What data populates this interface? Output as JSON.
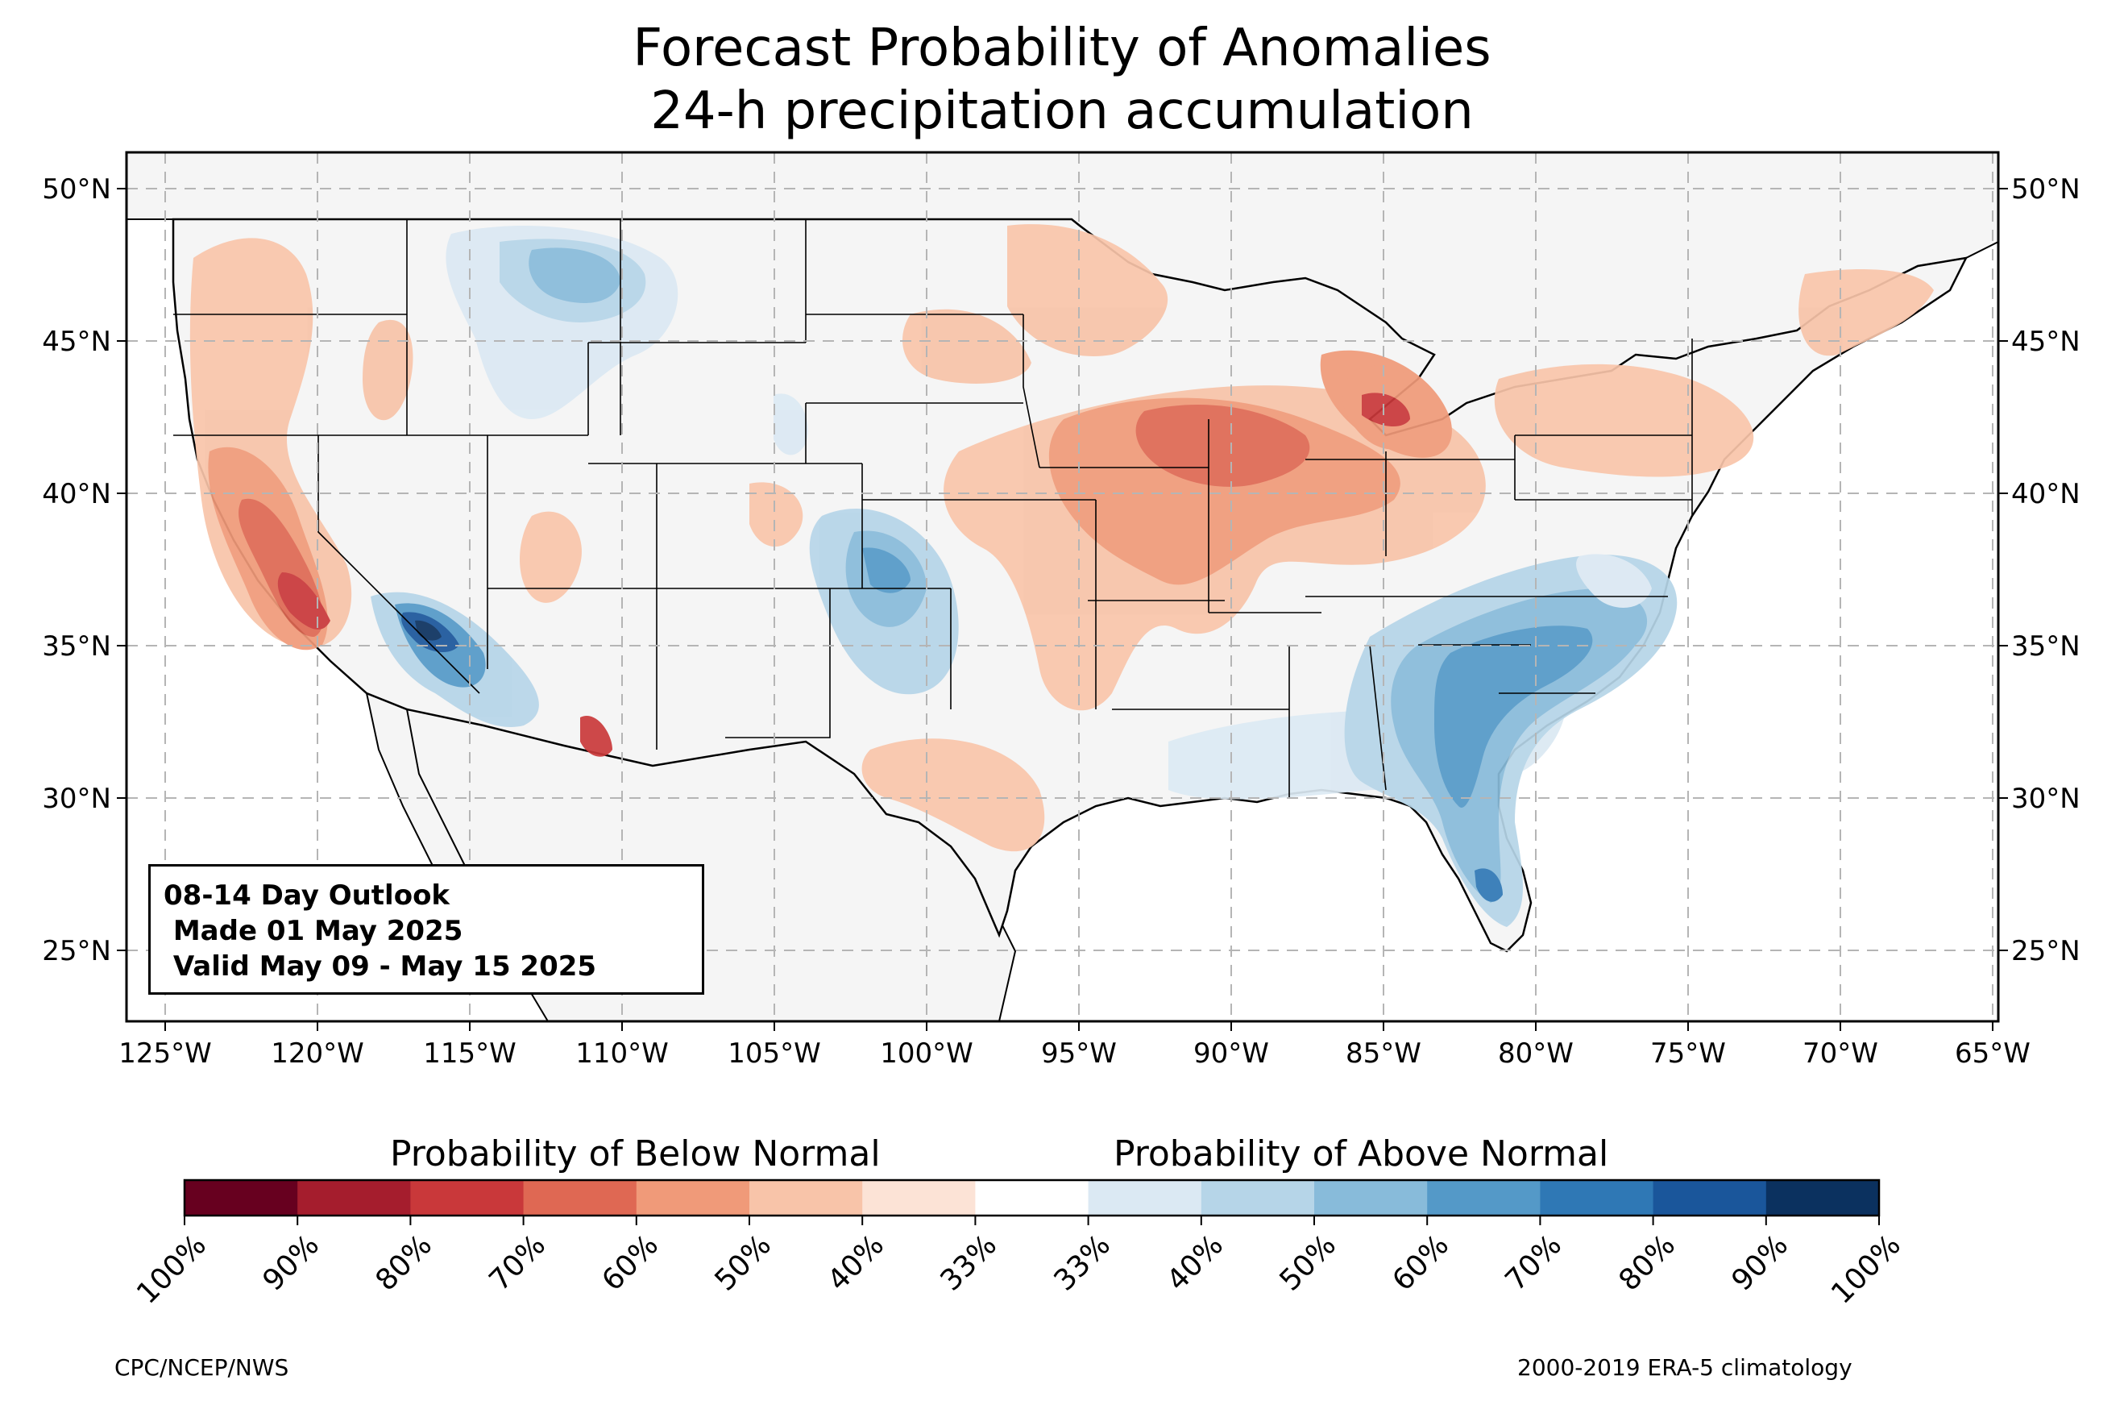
{
  "title": {
    "line1": "Forecast Probability of Anomalies",
    "line2": "24-h precipitation accumulation"
  },
  "map": {
    "lat_ticks": [
      "50°N",
      "45°N",
      "40°N",
      "35°N",
      "30°N",
      "25°N"
    ],
    "lon_ticks": [
      "125°W",
      "120°W",
      "115°W",
      "110°W",
      "105°W",
      "100°W",
      "95°W",
      "90°W",
      "85°W",
      "80°W",
      "75°W",
      "70°W",
      "65°W"
    ],
    "extent": {
      "lon": [
        -126.2,
        -64.8
      ],
      "lat": [
        22.7,
        51.2
      ]
    },
    "gridlines": "dashed",
    "land_color": "#f5f5f5"
  },
  "outlook_box": {
    "line1": "08-14 Day Outlook",
    "line2": " Made 01 May 2025",
    "line3": " Valid May 09 - May 15 2025"
  },
  "colorbar": {
    "below_label": "Probability of Below Normal",
    "above_label": "Probability of Above Normal",
    "ticks": [
      "100%",
      "90%",
      "80%",
      "70%",
      "60%",
      "50%",
      "40%",
      "33%",
      "33%",
      "40%",
      "50%",
      "60%",
      "70%",
      "80%",
      "90%",
      "100%"
    ],
    "colors": [
      "#67001f",
      "#a51d2d",
      "#c9383a",
      "#df6853",
      "#f09a79",
      "#f8c4a9",
      "#fce3d6",
      "#ffffff",
      "#dbe9f3",
      "#b6d5e8",
      "#88bbda",
      "#5499c8",
      "#2f78b5",
      "#1a569b",
      "#0b315f"
    ]
  },
  "footer": {
    "left": "CPC/NCEP/NWS",
    "right": "2000-2019 ERA-5 climatology"
  }
}
